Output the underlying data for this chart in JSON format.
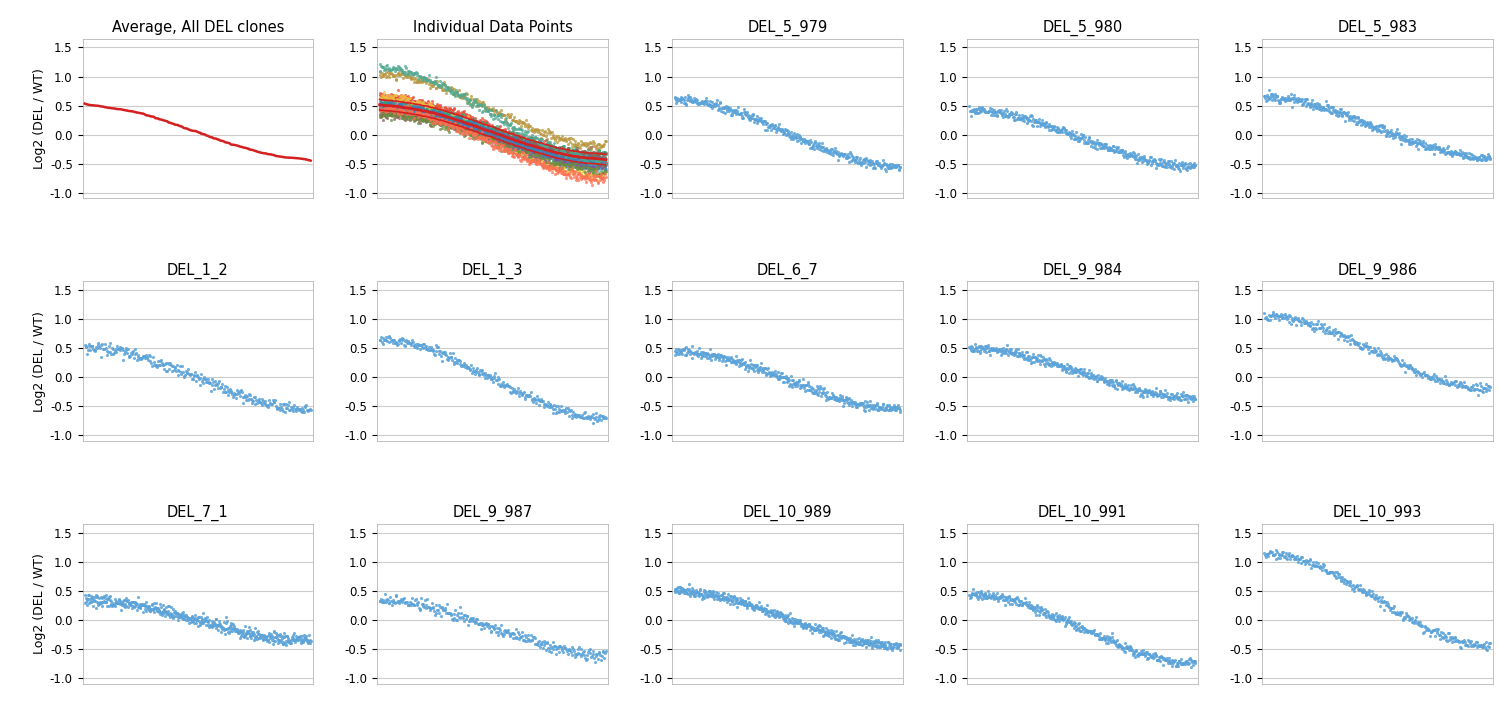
{
  "titles": [
    "Average, All DEL clones",
    "Individual Data Points",
    "DEL_5_979",
    "DEL_5_980",
    "DEL_5_983",
    "DEL_1_2",
    "DEL_1_3",
    "DEL_6_7",
    "DEL_9_984",
    "DEL_9_986",
    "DEL_7_1",
    "DEL_9_987",
    "DEL_10_989",
    "DEL_10_991",
    "DEL_10_993"
  ],
  "ylabel": "Log2 (DEL / WT)",
  "ylim": [
    -1.1,
    1.65
  ],
  "yticks": [
    -1.0,
    -0.5,
    0.0,
    0.5,
    1.0,
    1.5
  ],
  "background_color": "#ffffff",
  "grid_color": "#cccccc",
  "dot_color": "#5ba3d9",
  "red_color": "#d42020",
  "multi_colors": [
    "#5ba3d9",
    "#5ba3d9",
    "#e8503a",
    "#4aaa6a",
    "#f0c040",
    "#7b52ab",
    "#2aa87a",
    "#b8963c",
    "#8b6355",
    "#6b8f3f",
    "#3d7fbb",
    "#ff7050",
    "#50a890",
    "#c06080"
  ],
  "panel_params": {
    "DEL_5_979": [
      0.6,
      -0.55,
      0.04,
      400
    ],
    "DEL_5_980": [
      0.42,
      -0.55,
      0.04,
      400
    ],
    "DEL_5_983": [
      0.65,
      -0.4,
      0.04,
      400
    ],
    "DEL_1_2": [
      0.52,
      -0.55,
      0.05,
      300
    ],
    "DEL_1_3": [
      0.65,
      -0.7,
      0.04,
      300
    ],
    "DEL_6_7": [
      0.45,
      -0.55,
      0.04,
      400
    ],
    "DEL_9_984": [
      0.5,
      -0.35,
      0.04,
      400
    ],
    "DEL_9_986": [
      1.05,
      -0.2,
      0.04,
      300
    ],
    "DEL_7_1": [
      0.35,
      -0.35,
      0.05,
      500
    ],
    "DEL_9_987": [
      0.35,
      -0.6,
      0.05,
      300
    ],
    "DEL_10_989": [
      0.5,
      -0.45,
      0.04,
      500
    ],
    "DEL_10_991": [
      0.45,
      -0.75,
      0.04,
      400
    ],
    "DEL_10_993": [
      1.15,
      -0.45,
      0.04,
      300
    ]
  },
  "avg_line_params": [
    0.5,
    -0.42,
    0.015,
    400
  ],
  "n_clones": 13
}
